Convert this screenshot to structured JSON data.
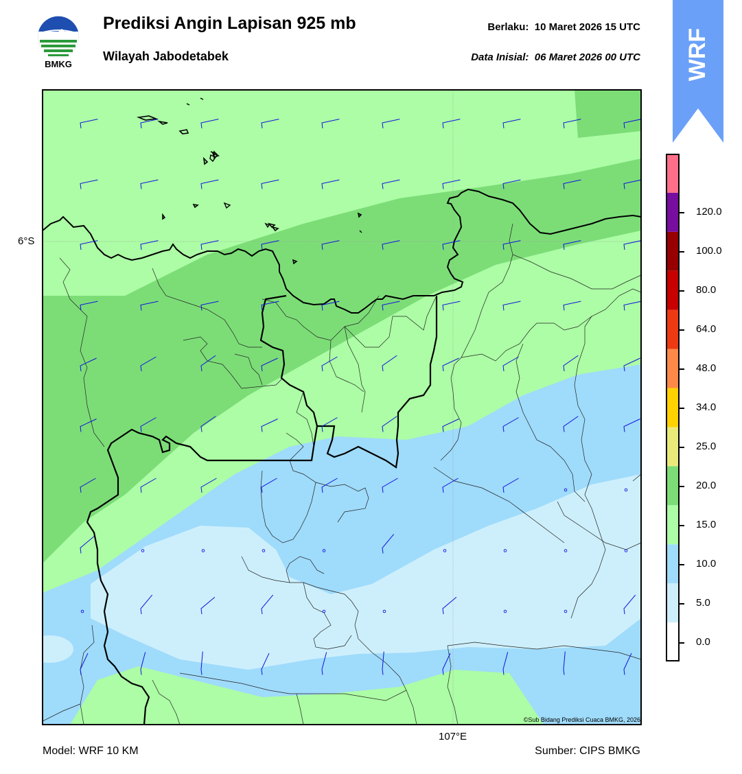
{
  "header": {
    "title": "Prediksi Angin Lapisan 925 mb",
    "subtitle": "Wilayah Jabodetabek",
    "valid_label": "Berlaku:",
    "valid_time": "10 Maret 2026 15 UTC",
    "init_label": "Data Inisial:",
    "init_time": "06 Maret 2026 00 UTC"
  },
  "logo": {
    "text": "BMKG",
    "icon": "bmkg-logo"
  },
  "badge": {
    "text": "WRF",
    "color": "#6aa0f8"
  },
  "map": {
    "lat_label": "6°S",
    "lon_label": "107°E",
    "copyright": "©Sub Bidang Prediksi Cuaca BMKG, 2026",
    "wind_symbol": "wind-barb",
    "calm_symbol": "calm-circle"
  },
  "colorbar": {
    "ticks": [
      "0.0",
      "5.0",
      "10.0",
      "15.0",
      "20.0",
      "25.0",
      "34.0",
      "48.0",
      "64.0",
      "80.0",
      "100.0",
      "120.0"
    ],
    "colors": [
      "#ffffff",
      "#cdeffc",
      "#9fdbfb",
      "#acfda5",
      "#7cdd77",
      "#eaea7a",
      "#ffd200",
      "#ff8a48",
      "#ee3a12",
      "#c80000",
      "#960000",
      "#770ea0",
      "#ff6f8a"
    ]
  },
  "footer": {
    "model": "Model: WRF 10 KM",
    "source": "Sumber: CIPS BMKG"
  }
}
